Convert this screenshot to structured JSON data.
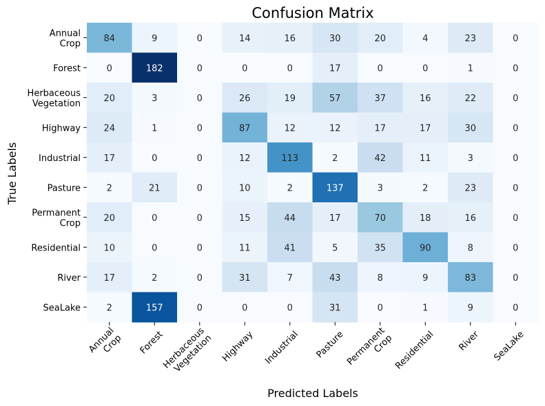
{
  "chart_data": {
    "type": "heatmap",
    "title": "Confusion Matrix",
    "xlabel": "Predicted Labels",
    "ylabel": "True Labels",
    "colormap": "Blues",
    "colorbar": false,
    "value_range": [
      0,
      182
    ],
    "row_labels": [
      [
        "Annual",
        "Crop"
      ],
      [
        "Forest"
      ],
      [
        "Herbaceous",
        "Vegetation"
      ],
      [
        "Highway"
      ],
      [
        "Industrial"
      ],
      [
        "Pasture"
      ],
      [
        "Permanent",
        "Crop"
      ],
      [
        "Residential"
      ],
      [
        "River"
      ],
      [
        "SeaLake"
      ]
    ],
    "col_labels": [
      [
        "Annual",
        "Crop"
      ],
      [
        "Forest"
      ],
      [
        "Herbaceous",
        "Vegetation"
      ],
      [
        "Highway"
      ],
      [
        "Industrial"
      ],
      [
        "Pasture"
      ],
      [
        "Permanent",
        "Crop"
      ],
      [
        "Residential"
      ],
      [
        "River"
      ],
      [
        "SeaLake"
      ]
    ],
    "matrix": [
      [
        84,
        9,
        0,
        14,
        16,
        30,
        20,
        4,
        23,
        0
      ],
      [
        0,
        182,
        0,
        0,
        0,
        17,
        0,
        0,
        1,
        0
      ],
      [
        20,
        3,
        0,
        26,
        19,
        57,
        37,
        16,
        22,
        0
      ],
      [
        24,
        1,
        0,
        87,
        12,
        12,
        17,
        17,
        30,
        0
      ],
      [
        17,
        0,
        0,
        12,
        113,
        2,
        42,
        11,
        3,
        0
      ],
      [
        2,
        21,
        0,
        10,
        2,
        137,
        3,
        2,
        23,
        0
      ],
      [
        20,
        0,
        0,
        15,
        44,
        17,
        70,
        18,
        16,
        0
      ],
      [
        10,
        0,
        0,
        11,
        41,
        5,
        35,
        90,
        8,
        0
      ],
      [
        17,
        2,
        0,
        31,
        7,
        43,
        8,
        9,
        83,
        0
      ],
      [
        2,
        157,
        0,
        0,
        0,
        31,
        0,
        1,
        9,
        0
      ]
    ]
  }
}
